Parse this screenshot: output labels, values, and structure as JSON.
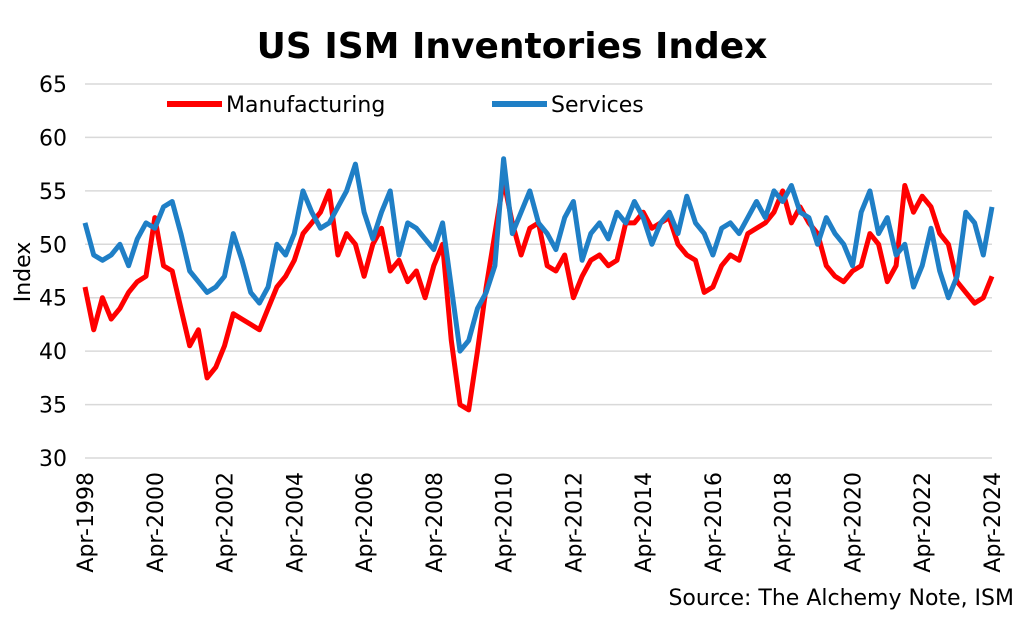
{
  "chart_data": {
    "type": "line",
    "title": "US ISM Inventories Index",
    "ylabel": "Index",
    "xlabel": "",
    "ylim": [
      30,
      65
    ],
    "yticks": [
      30,
      35,
      40,
      45,
      50,
      55,
      60,
      65
    ],
    "xlim": [
      "Apr-1998",
      "Apr-2024"
    ],
    "xtick_labels": [
      "Apr-1998",
      "Apr-2000",
      "Apr-2002",
      "Apr-2004",
      "Apr-2006",
      "Apr-2008",
      "Apr-2010",
      "Apr-2012",
      "Apr-2014",
      "Apr-2016",
      "Apr-2018",
      "Apr-2020",
      "Apr-2022",
      "Apr-2024"
    ],
    "grid": "horizontal",
    "legend_position": "top",
    "source": "Source: The Alchemy Note, ISM",
    "series": [
      {
        "name": "Manufacturing",
        "color": "#ff0000",
        "points": [
          [
            "1998-04",
            46.0
          ],
          [
            "1998-07",
            42.0
          ],
          [
            "1998-10",
            45.0
          ],
          [
            "1999-01",
            43.0
          ],
          [
            "1999-04",
            44.0
          ],
          [
            "1999-07",
            45.5
          ],
          [
            "1999-10",
            46.5
          ],
          [
            "2000-01",
            47.0
          ],
          [
            "2000-04",
            52.5
          ],
          [
            "2000-07",
            48.0
          ],
          [
            "2000-10",
            47.5
          ],
          [
            "2001-01",
            44.0
          ],
          [
            "2001-04",
            40.5
          ],
          [
            "2001-07",
            42.0
          ],
          [
            "2001-10",
            37.5
          ],
          [
            "2002-01",
            38.5
          ],
          [
            "2002-04",
            40.5
          ],
          [
            "2002-07",
            43.5
          ],
          [
            "2002-10",
            43.0
          ],
          [
            "2003-01",
            42.5
          ],
          [
            "2003-04",
            42.0
          ],
          [
            "2003-07",
            44.0
          ],
          [
            "2003-10",
            46.0
          ],
          [
            "2004-01",
            47.0
          ],
          [
            "2004-04",
            48.5
          ],
          [
            "2004-07",
            51.0
          ],
          [
            "2004-10",
            52.0
          ],
          [
            "2005-01",
            53.0
          ],
          [
            "2005-04",
            55.0
          ],
          [
            "2005-07",
            49.0
          ],
          [
            "2005-10",
            51.0
          ],
          [
            "2006-01",
            50.0
          ],
          [
            "2006-04",
            47.0
          ],
          [
            "2006-07",
            50.0
          ],
          [
            "2006-10",
            51.5
          ],
          [
            "2007-01",
            47.5
          ],
          [
            "2007-04",
            48.5
          ],
          [
            "2007-07",
            46.5
          ],
          [
            "2007-10",
            47.5
          ],
          [
            "2008-01",
            45.0
          ],
          [
            "2008-04",
            48.0
          ],
          [
            "2008-07",
            50.0
          ],
          [
            "2008-10",
            41.0
          ],
          [
            "2009-01",
            35.0
          ],
          [
            "2009-04",
            34.5
          ],
          [
            "2009-07",
            40.0
          ],
          [
            "2009-10",
            46.0
          ],
          [
            "2010-01",
            51.0
          ],
          [
            "2010-04",
            56.0
          ],
          [
            "2010-07",
            52.0
          ],
          [
            "2010-10",
            49.0
          ],
          [
            "2011-01",
            51.5
          ],
          [
            "2011-04",
            52.0
          ],
          [
            "2011-07",
            48.0
          ],
          [
            "2011-10",
            47.5
          ],
          [
            "2012-01",
            49.0
          ],
          [
            "2012-04",
            45.0
          ],
          [
            "2012-07",
            47.0
          ],
          [
            "2012-10",
            48.5
          ],
          [
            "2013-01",
            49.0
          ],
          [
            "2013-04",
            48.0
          ],
          [
            "2013-07",
            48.5
          ],
          [
            "2013-10",
            52.0
          ],
          [
            "2014-01",
            52.0
          ],
          [
            "2014-04",
            53.0
          ],
          [
            "2014-07",
            51.5
          ],
          [
            "2014-10",
            52.0
          ],
          [
            "2015-01",
            52.5
          ],
          [
            "2015-04",
            50.0
          ],
          [
            "2015-07",
            49.0
          ],
          [
            "2015-10",
            48.5
          ],
          [
            "2016-01",
            45.5
          ],
          [
            "2016-04",
            46.0
          ],
          [
            "2016-07",
            48.0
          ],
          [
            "2016-10",
            49.0
          ],
          [
            "2017-01",
            48.5
          ],
          [
            "2017-04",
            51.0
          ],
          [
            "2017-07",
            51.5
          ],
          [
            "2017-10",
            52.0
          ],
          [
            "2018-01",
            53.0
          ],
          [
            "2018-04",
            55.0
          ],
          [
            "2018-07",
            52.0
          ],
          [
            "2018-10",
            53.5
          ],
          [
            "2019-01",
            52.0
          ],
          [
            "2019-04",
            51.0
          ],
          [
            "2019-07",
            48.0
          ],
          [
            "2019-10",
            47.0
          ],
          [
            "2020-01",
            46.5
          ],
          [
            "2020-04",
            47.5
          ],
          [
            "2020-07",
            48.0
          ],
          [
            "2020-10",
            51.0
          ],
          [
            "2021-01",
            50.0
          ],
          [
            "2021-04",
            46.5
          ],
          [
            "2021-07",
            48.0
          ],
          [
            "2021-10",
            55.5
          ],
          [
            "2022-01",
            53.0
          ],
          [
            "2022-04",
            54.5
          ],
          [
            "2022-07",
            53.5
          ],
          [
            "2022-10",
            51.0
          ],
          [
            "2023-01",
            50.0
          ],
          [
            "2023-04",
            46.5
          ],
          [
            "2023-07",
            45.5
          ],
          [
            "2023-10",
            44.5
          ],
          [
            "2024-01",
            45.0
          ],
          [
            "2024-04",
            47.0
          ]
        ]
      },
      {
        "name": "Services",
        "color": "#1f7fc6",
        "points": [
          [
            "1998-04",
            52.0
          ],
          [
            "1998-07",
            49.0
          ],
          [
            "1998-10",
            48.5
          ],
          [
            "1999-01",
            49.0
          ],
          [
            "1999-04",
            50.0
          ],
          [
            "1999-07",
            48.0
          ],
          [
            "1999-10",
            50.5
          ],
          [
            "2000-01",
            52.0
          ],
          [
            "2000-04",
            51.5
          ],
          [
            "2000-07",
            53.5
          ],
          [
            "2000-10",
            54.0
          ],
          [
            "2001-01",
            51.0
          ],
          [
            "2001-04",
            47.5
          ],
          [
            "2001-07",
            46.5
          ],
          [
            "2001-10",
            45.5
          ],
          [
            "2002-01",
            46.0
          ],
          [
            "2002-04",
            47.0
          ],
          [
            "2002-07",
            51.0
          ],
          [
            "2002-10",
            48.5
          ],
          [
            "2003-01",
            45.5
          ],
          [
            "2003-04",
            44.5
          ],
          [
            "2003-07",
            46.0
          ],
          [
            "2003-10",
            50.0
          ],
          [
            "2004-01",
            49.0
          ],
          [
            "2004-04",
            51.0
          ],
          [
            "2004-07",
            55.0
          ],
          [
            "2004-10",
            53.0
          ],
          [
            "2005-01",
            51.5
          ],
          [
            "2005-04",
            52.0
          ],
          [
            "2005-07",
            53.5
          ],
          [
            "2005-10",
            55.0
          ],
          [
            "2006-01",
            57.5
          ],
          [
            "2006-04",
            53.0
          ],
          [
            "2006-07",
            50.5
          ],
          [
            "2006-10",
            53.0
          ],
          [
            "2007-01",
            55.0
          ],
          [
            "2007-04",
            49.0
          ],
          [
            "2007-07",
            52.0
          ],
          [
            "2007-10",
            51.5
          ],
          [
            "2008-01",
            50.5
          ],
          [
            "2008-04",
            49.5
          ],
          [
            "2008-07",
            52.0
          ],
          [
            "2008-10",
            46.0
          ],
          [
            "2009-01",
            40.0
          ],
          [
            "2009-04",
            41.0
          ],
          [
            "2009-07",
            44.0
          ],
          [
            "2009-10",
            45.5
          ],
          [
            "2010-01",
            48.0
          ],
          [
            "2010-04",
            58.0
          ],
          [
            "2010-07",
            51.0
          ],
          [
            "2010-10",
            53.0
          ],
          [
            "2011-01",
            55.0
          ],
          [
            "2011-04",
            52.0
          ],
          [
            "2011-07",
            51.0
          ],
          [
            "2011-10",
            49.5
          ],
          [
            "2012-01",
            52.5
          ],
          [
            "2012-04",
            54.0
          ],
          [
            "2012-07",
            48.5
          ],
          [
            "2012-10",
            51.0
          ],
          [
            "2013-01",
            52.0
          ],
          [
            "2013-04",
            50.5
          ],
          [
            "2013-07",
            53.0
          ],
          [
            "2013-10",
            52.0
          ],
          [
            "2014-01",
            54.0
          ],
          [
            "2014-04",
            52.5
          ],
          [
            "2014-07",
            50.0
          ],
          [
            "2014-10",
            52.0
          ],
          [
            "2015-01",
            53.0
          ],
          [
            "2015-04",
            51.0
          ],
          [
            "2015-07",
            54.5
          ],
          [
            "2015-10",
            52.0
          ],
          [
            "2016-01",
            51.0
          ],
          [
            "2016-04",
            49.0
          ],
          [
            "2016-07",
            51.5
          ],
          [
            "2016-10",
            52.0
          ],
          [
            "2017-01",
            51.0
          ],
          [
            "2017-04",
            52.5
          ],
          [
            "2017-07",
            54.0
          ],
          [
            "2017-10",
            52.5
          ],
          [
            "2018-01",
            55.0
          ],
          [
            "2018-04",
            54.0
          ],
          [
            "2018-07",
            55.5
          ],
          [
            "2018-10",
            53.0
          ],
          [
            "2019-01",
            52.5
          ],
          [
            "2019-04",
            50.0
          ],
          [
            "2019-07",
            52.5
          ],
          [
            "2019-10",
            51.0
          ],
          [
            "2020-01",
            50.0
          ],
          [
            "2020-04",
            48.0
          ],
          [
            "2020-07",
            53.0
          ],
          [
            "2020-10",
            55.0
          ],
          [
            "2021-01",
            51.0
          ],
          [
            "2021-04",
            52.5
          ],
          [
            "2021-07",
            49.0
          ],
          [
            "2021-10",
            50.0
          ],
          [
            "2022-01",
            46.0
          ],
          [
            "2022-04",
            48.0
          ],
          [
            "2022-07",
            51.5
          ],
          [
            "2022-10",
            47.5
          ],
          [
            "2023-01",
            45.0
          ],
          [
            "2023-04",
            47.0
          ],
          [
            "2023-07",
            53.0
          ],
          [
            "2023-10",
            52.0
          ],
          [
            "2024-01",
            49.0
          ],
          [
            "2024-04",
            53.5
          ]
        ]
      }
    ]
  }
}
